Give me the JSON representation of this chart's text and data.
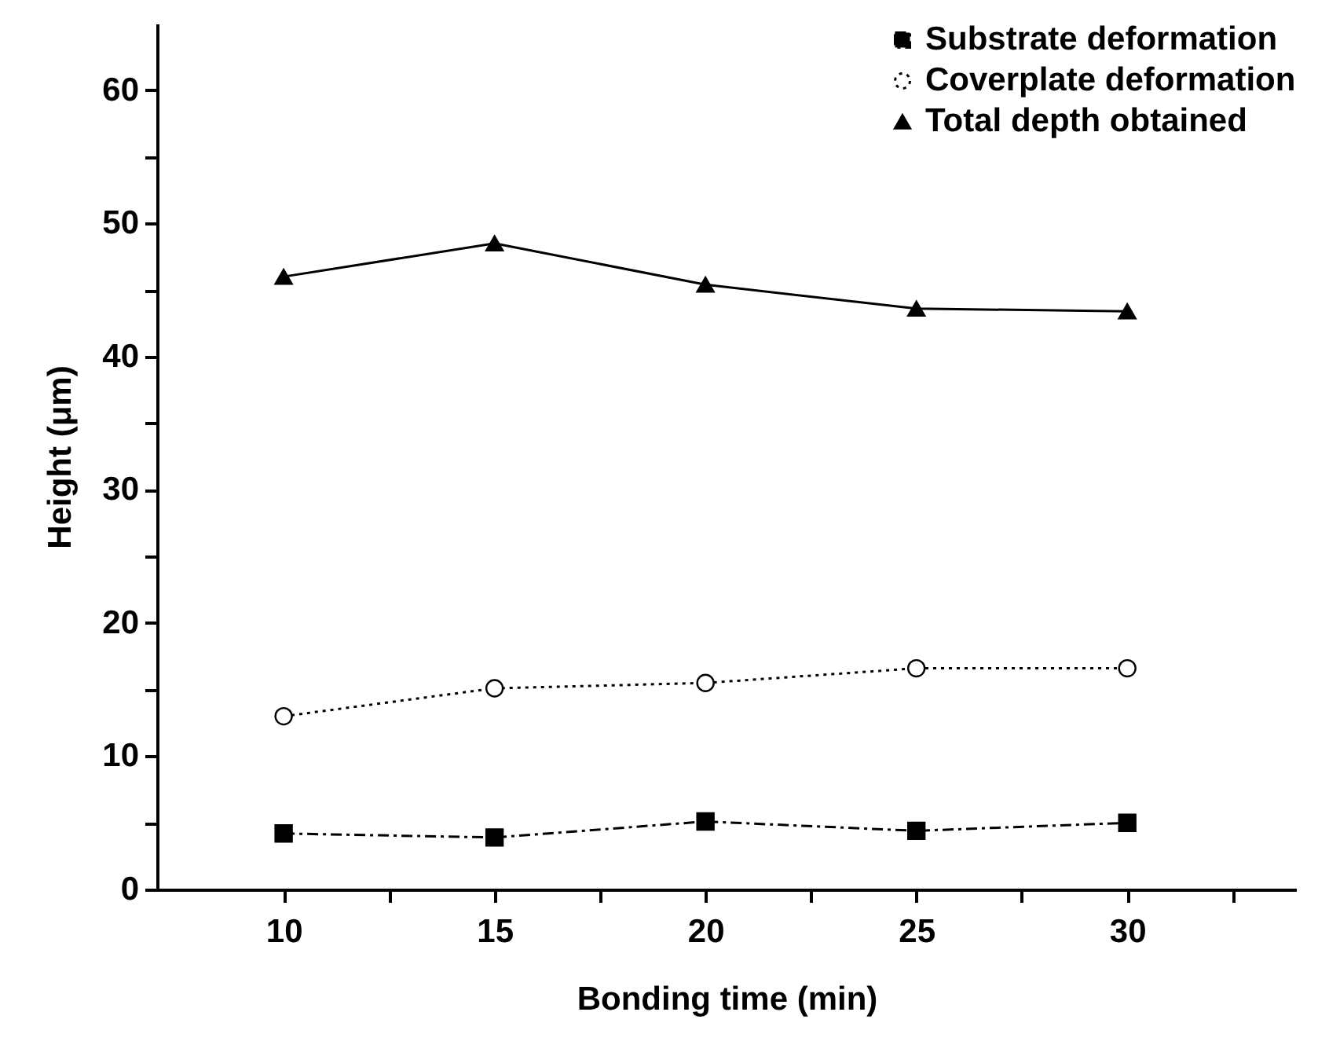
{
  "chart_data": {
    "type": "line",
    "xlabel": "Bonding time (min)",
    "ylabel": "Height (μm)",
    "x": [
      10,
      15,
      20,
      25,
      30
    ],
    "series": [
      {
        "name": "Substrate deformation",
        "color": "#000000",
        "marker": "square",
        "line_style": "dashed",
        "values": [
          4.2,
          3.9,
          5.1,
          4.4,
          5.0
        ]
      },
      {
        "name": "Coverplate deformation",
        "color": "#000000",
        "marker": "circle",
        "line_style": "dotted",
        "values": [
          13.0,
          15.1,
          15.5,
          16.6,
          16.6
        ]
      },
      {
        "name": "Total depth obtained",
        "color": "#000000",
        "marker": "triangle",
        "line_style": "solid",
        "values": [
          46.0,
          48.5,
          45.4,
          43.6,
          43.4
        ]
      }
    ],
    "xlim": [
      7,
      34
    ],
    "xticks": [
      10,
      {
        "value": 12.5,
        "label": null
      },
      15,
      {
        "value": 17.5,
        "label": null
      },
      20,
      {
        "value": 22.5,
        "label": null
      },
      25,
      {
        "value": 27.5,
        "label": null
      },
      30,
      {
        "value": 32.5,
        "label": null
      }
    ],
    "ylim": [
      0,
      65
    ],
    "yticks": [
      0,
      {
        "value": 5,
        "label": null
      },
      10,
      {
        "value": 15,
        "label": null
      },
      20,
      {
        "value": 25,
        "label": null
      },
      30,
      {
        "value": 35,
        "label": null
      },
      40,
      {
        "value": 45,
        "label": null
      },
      50,
      {
        "value": 55,
        "label": null
      },
      60
    ],
    "legend": "top right",
    "grid": false
  }
}
